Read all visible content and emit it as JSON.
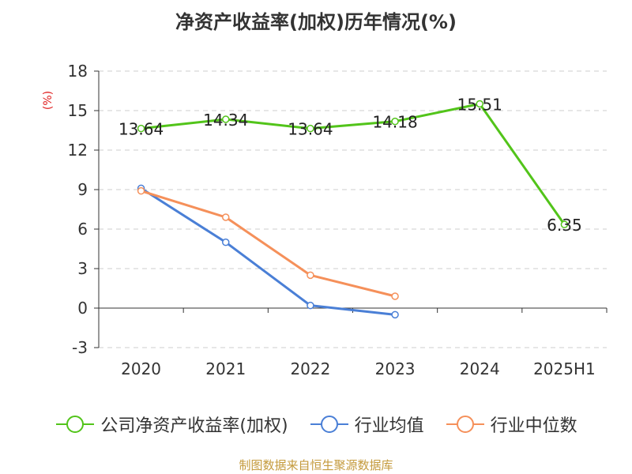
{
  "chart_data": {
    "type": "line",
    "title": "净资产收益率(加权)历年情况(%)",
    "ylabel": "(%)",
    "xlabel": "",
    "categories": [
      "2020",
      "2021",
      "2022",
      "2023",
      "2024",
      "2025H1"
    ],
    "ylim": [
      -3,
      18
    ],
    "yticks": [
      -3,
      0,
      3,
      6,
      9,
      12,
      15,
      18
    ],
    "grid": true,
    "legend_position": "bottom",
    "series": [
      {
        "name": "公司净资产收益率(加权)",
        "color": "#52c41a",
        "values": [
          13.64,
          14.34,
          13.64,
          14.18,
          15.51,
          6.35
        ],
        "labels": [
          "13.64",
          "14.34",
          "13.64",
          "14.18",
          "15.51",
          "6.35"
        ]
      },
      {
        "name": "行业均值",
        "color": "#4a7fd6",
        "values": [
          9.1,
          5.0,
          0.2,
          -0.5,
          null,
          null
        ]
      },
      {
        "name": "行业中位数",
        "color": "#f5905a",
        "values": [
          8.9,
          6.9,
          2.5,
          0.9,
          null,
          null
        ]
      }
    ]
  },
  "source_note": "制图数据来自恒生聚源数据库"
}
